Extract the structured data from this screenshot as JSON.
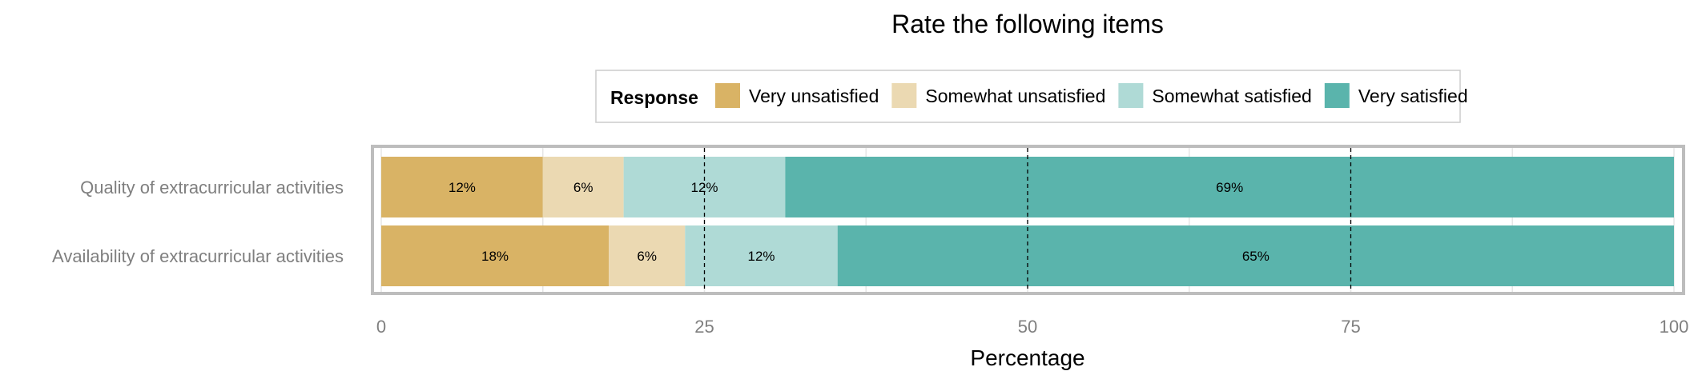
{
  "chart_data": {
    "type": "bar",
    "orientation": "horizontal",
    "stacked": true,
    "title": "Rate the following items",
    "xlabel": "Percentage",
    "ylabel": "",
    "xlim": [
      0,
      100
    ],
    "x_ticks": [
      "0",
      "25",
      "50",
      "75",
      "100"
    ],
    "x_tick_values": [
      0,
      25,
      50,
      75,
      100
    ],
    "reference_lines": [
      25,
      50,
      75
    ],
    "grid": true,
    "legend": {
      "title": "Response",
      "placement": "top"
    },
    "categories": [
      "Quality of extracurricular activities",
      "Availability of extracurricular activities"
    ],
    "series": [
      {
        "name": "Very unsatisfied",
        "color": "#D9B365",
        "values": [
          12.5,
          17.6
        ],
        "labels": [
          "12%",
          "18%"
        ]
      },
      {
        "name": "Somewhat unsatisfied",
        "color": "#EBD9B2",
        "values": [
          6.25,
          5.9
        ],
        "labels": [
          "6%",
          "6%"
        ]
      },
      {
        "name": "Somewhat satisfied",
        "color": "#AFDAD6",
        "values": [
          12.5,
          11.8
        ],
        "labels": [
          "12%",
          "12%"
        ]
      },
      {
        "name": "Very satisfied",
        "color": "#5AB4AC",
        "values": [
          68.75,
          64.7
        ],
        "labels": [
          "69%",
          "65%"
        ]
      }
    ]
  }
}
